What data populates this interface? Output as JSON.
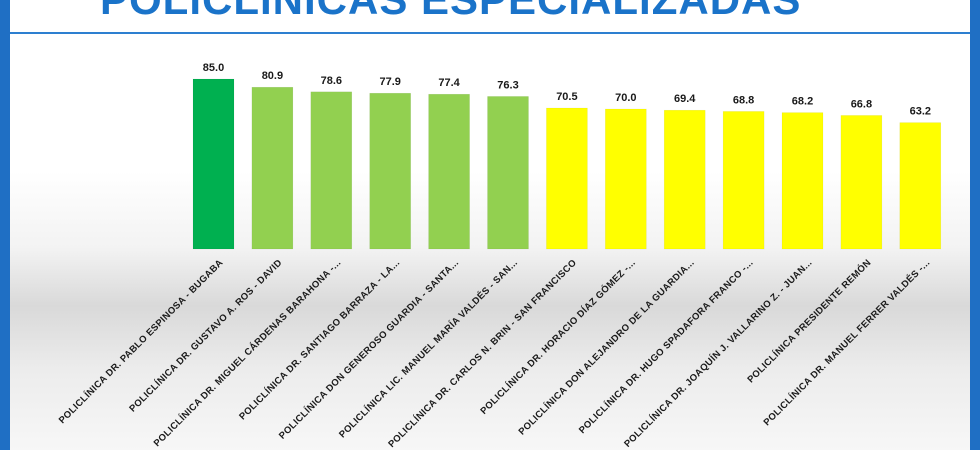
{
  "title": "POLICLÍNICAS ESPECIALIZADAS",
  "colors": {
    "background_frame": "#1f6fc4",
    "title": "#1a73c9",
    "top": "#00b050",
    "high": "#92d050",
    "mid": "#ffff00"
  },
  "chart_data": {
    "type": "bar",
    "title": "POLICLÍNICAS ESPECIALIZADAS",
    "xlabel": "",
    "ylabel": "",
    "ylim": [
      0,
      85
    ],
    "grid": false,
    "legend": "none",
    "categories": [
      "POLICLÍNICA DR. PABLO ESPINOSA - BUGABA",
      "POLICLÍNICA DR. GUSTAVO A. ROS - DAVID",
      "POLICLÍNICA DR. MIGUEL CÁRDENAS BARAHONA -...",
      "POLICLÍNICA DR. SANTIAGO BARRAZA - LA...",
      "POLICLÍNICA DON GENEROSO GUARDIA - SANTA...",
      "POLICLÍNICA LIC. MANUEL MARÍA VALDÉS - SAN...",
      "POLICLÍNICA DR. CARLOS N. BRIN - SAN FRANCISCO",
      "POLICLÍNICA DR. HORACIO DÍAZ GÓMEZ -...",
      "POLICLÍNICA DON ALEJANDRO DE LA GUARDIA...",
      "POLICLÍNICA DR. HUGO SPADAFORA FRANCO -...",
      "POLICLÍNICA DR. JOAQUÍN J. VALLARINO Z. - JUAN...",
      "POLICLÍNICA PRESIDENTE REMÓN",
      "POLICLÍNICA DR. MANUEL FERRER VALDÉS -..."
    ],
    "values": [
      85.0,
      80.9,
      78.6,
      77.9,
      77.4,
      76.3,
      70.5,
      70.0,
      69.4,
      68.8,
      68.2,
      66.8,
      63.2
    ],
    "value_labels": [
      "85.0",
      "80.9",
      "78.6",
      "77.9",
      "77.4",
      "76.3",
      "70.5",
      "70.0",
      "69.4",
      "68.8",
      "68.2",
      "66.8",
      "63.2"
    ],
    "bar_colors": [
      "#00b050",
      "#92d050",
      "#92d050",
      "#92d050",
      "#92d050",
      "#92d050",
      "#ffff00",
      "#ffff00",
      "#ffff00",
      "#ffff00",
      "#ffff00",
      "#ffff00",
      "#ffff00"
    ]
  }
}
